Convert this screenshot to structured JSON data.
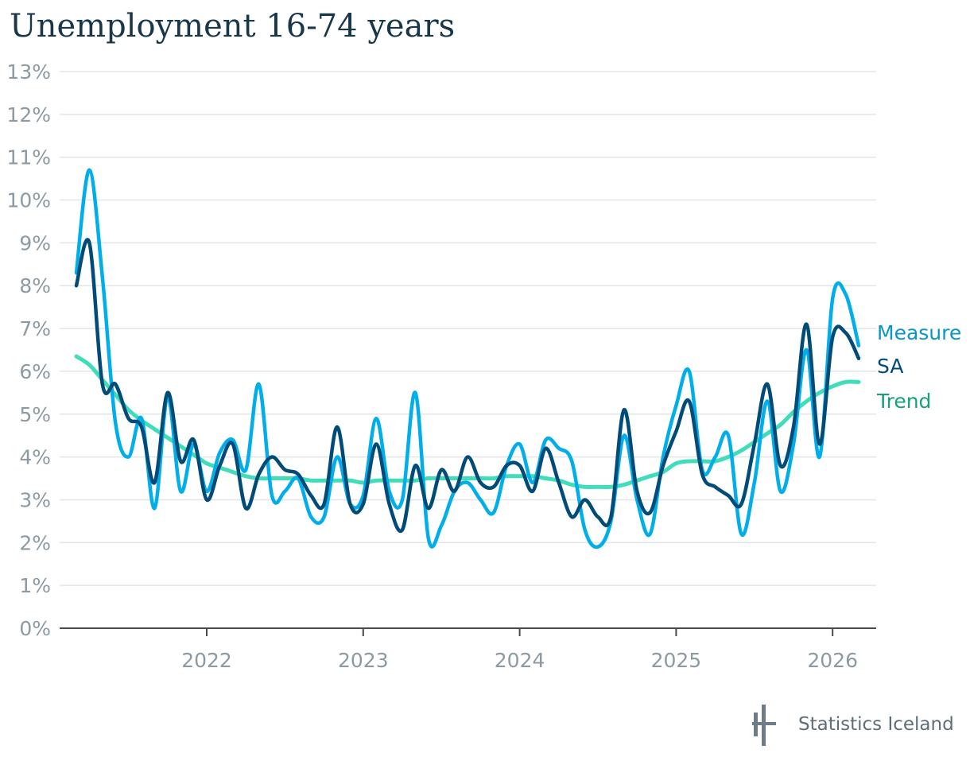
{
  "chart_data": {
    "type": "line",
    "title": "Unemployment 16-74 years",
    "xlabel": "",
    "ylabel": "",
    "ylim": [
      0,
      13
    ],
    "y_ticks": [
      "0%",
      "1%",
      "2%",
      "3%",
      "4%",
      "5%",
      "6%",
      "7%",
      "8%",
      "9%",
      "10%",
      "11%",
      "12%",
      "13%"
    ],
    "x_tick_labels": [
      "2022",
      "2023",
      "2024",
      "2025",
      "2026"
    ],
    "grid": true,
    "legend_placement": "right, at line ends",
    "x_start": "2021-03",
    "x_frequency": "monthly",
    "series": [
      {
        "name": "Measure",
        "color": "#00aee9",
        "values": [
          8.3,
          10.7,
          8.2,
          4.8,
          4.0,
          4.9,
          2.8,
          5.4,
          3.2,
          4.3,
          3.2,
          4.1,
          4.4,
          3.7,
          5.7,
          3.1,
          3.2,
          3.5,
          2.6,
          2.6,
          4.0,
          2.9,
          3.1,
          4.9,
          3.2,
          3.0,
          5.5,
          2.1,
          2.4,
          3.2,
          3.4,
          3.0,
          2.7,
          3.8,
          4.3,
          3.4,
          4.4,
          4.2,
          3.9,
          2.3,
          1.9,
          2.5,
          4.5,
          3.0,
          2.2,
          4.0,
          5.2,
          6.0,
          3.7,
          4.0,
          4.5,
          2.2,
          3.4,
          5.3,
          3.2,
          4.3,
          6.5,
          4.0,
          7.7,
          7.8,
          6.6
        ]
      },
      {
        "name": "SA",
        "color": "#004b77",
        "values": [
          8.0,
          9.0,
          5.7,
          5.7,
          4.9,
          4.7,
          3.4,
          5.5,
          3.9,
          4.4,
          3.0,
          3.8,
          4.3,
          2.8,
          3.6,
          4.0,
          3.7,
          3.6,
          3.1,
          2.9,
          4.7,
          2.9,
          2.9,
          4.3,
          2.9,
          2.3,
          3.8,
          2.8,
          3.7,
          3.2,
          4.0,
          3.4,
          3.3,
          3.8,
          3.8,
          3.2,
          4.2,
          3.4,
          2.6,
          3.0,
          2.6,
          2.6,
          5.1,
          3.2,
          2.7,
          3.8,
          4.6,
          5.3,
          3.6,
          3.3,
          3.1,
          2.9,
          4.3,
          5.7,
          3.8,
          4.7,
          7.1,
          4.3,
          6.8,
          6.9,
          6.3
        ]
      },
      {
        "name": "Trend",
        "color": "#3fddb9",
        "values": [
          6.35,
          6.15,
          5.8,
          5.45,
          5.1,
          4.85,
          4.65,
          4.45,
          4.25,
          4.05,
          3.85,
          3.75,
          3.65,
          3.55,
          3.5,
          3.5,
          3.5,
          3.5,
          3.45,
          3.45,
          3.45,
          3.45,
          3.4,
          3.45,
          3.45,
          3.45,
          3.45,
          3.5,
          3.5,
          3.5,
          3.5,
          3.5,
          3.5,
          3.55,
          3.55,
          3.55,
          3.5,
          3.45,
          3.35,
          3.3,
          3.3,
          3.3,
          3.35,
          3.45,
          3.55,
          3.65,
          3.85,
          3.9,
          3.9,
          3.9,
          4.0,
          4.15,
          4.35,
          4.55,
          4.75,
          5.05,
          5.3,
          5.5,
          5.65,
          5.75,
          5.75
        ]
      }
    ]
  },
  "colors": {
    "title": "#18374a",
    "axis_text": "#8c9aa3",
    "grid": "#e3e6e8",
    "axis": "#4a4a4a"
  },
  "brand": {
    "name": "Statistics Iceland",
    "logo_color": "#6d7d86"
  }
}
